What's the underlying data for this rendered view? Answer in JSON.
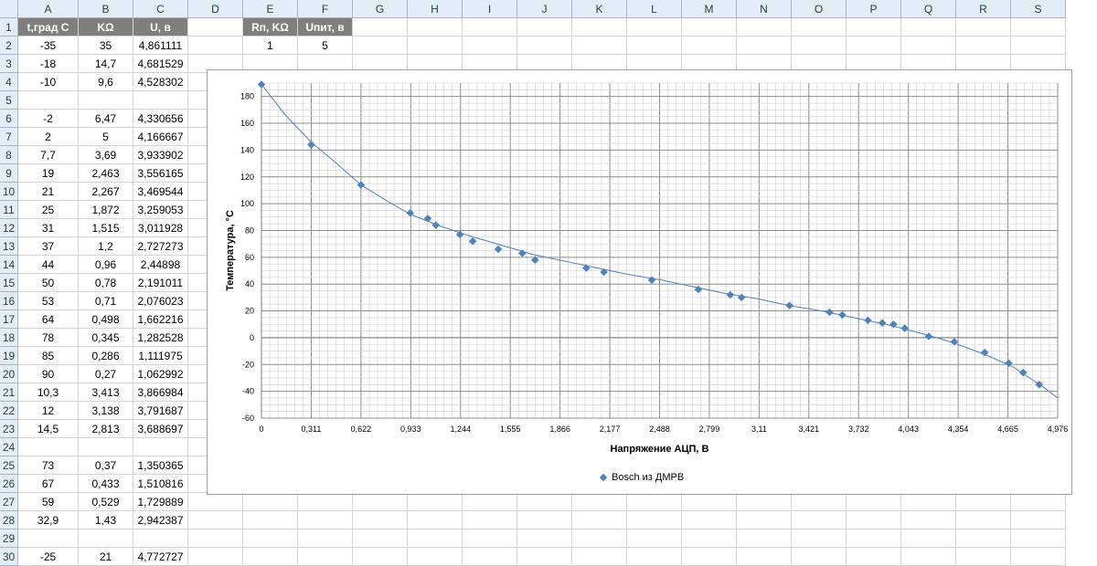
{
  "columns": [
    "A",
    "B",
    "C",
    "D",
    "E",
    "F",
    "G",
    "H",
    "I",
    "J",
    "K",
    "L",
    "M",
    "N",
    "O",
    "P",
    "Q",
    "R",
    "S"
  ],
  "rows": [
    "1",
    "2",
    "3",
    "4",
    "5",
    "6",
    "7",
    "8",
    "9",
    "10",
    "11",
    "12",
    "13",
    "14",
    "15",
    "16",
    "17",
    "18",
    "19",
    "20",
    "21",
    "22",
    "23",
    "24",
    "25",
    "26",
    "27",
    "28",
    "29",
    "30"
  ],
  "table": {
    "headers": [
      "t,град С",
      "KΩ",
      "U, в"
    ],
    "rows": [
      [
        "-35",
        "35",
        "4,861111"
      ],
      [
        "-18",
        "14,7",
        "4,681529"
      ],
      [
        "-10",
        "9,6",
        "4,528302"
      ],
      [
        "",
        "",
        ""
      ],
      [
        "-2",
        "6,47",
        "4,330656"
      ],
      [
        "2",
        "5",
        "4,166667"
      ],
      [
        "7,7",
        "3,69",
        "3,933902"
      ],
      [
        "19",
        "2,463",
        "3,556165"
      ],
      [
        "21",
        "2,267",
        "3,469544"
      ],
      [
        "25",
        "1,872",
        "3,259053"
      ],
      [
        "31",
        "1,515",
        "3,011928"
      ],
      [
        "37",
        "1,2",
        "2,727273"
      ],
      [
        "44",
        "0,96",
        "2,44898"
      ],
      [
        "50",
        "0,78",
        "2,191011"
      ],
      [
        "53",
        "0,71",
        "2,076023"
      ],
      [
        "64",
        "0,498",
        "1,662216"
      ],
      [
        "78",
        "0,345",
        "1,282528"
      ],
      [
        "85",
        "0,286",
        "1,111975"
      ],
      [
        "90",
        "0,27",
        "1,062992"
      ],
      [
        "10,3",
        "3,413",
        "3,866984"
      ],
      [
        "12",
        "3,138",
        "3,791687"
      ],
      [
        "14,5",
        "2,813",
        "3,688697"
      ],
      [
        "",
        "",
        ""
      ],
      [
        "73",
        "0,37",
        "1,350365"
      ],
      [
        "67",
        "0,433",
        "1,510816"
      ],
      [
        "59",
        "0,529",
        "1,729889"
      ],
      [
        "32,9",
        "1,43",
        "2,942387"
      ],
      [
        "",
        "",
        ""
      ],
      [
        "-25",
        "21",
        "4,772727"
      ]
    ]
  },
  "params": {
    "headers": [
      "Rп, KΩ",
      "Uпит, в"
    ],
    "values": [
      "1",
      "5"
    ]
  },
  "chart_data": {
    "type": "scatter",
    "xlabel": "Напряжение АЦП, В",
    "ylabel": "Температура, °С",
    "xlim": [
      0,
      4.976
    ],
    "ylim": [
      -60,
      190
    ],
    "xticks": [
      "0",
      "0,311",
      "0,622",
      "0,933",
      "1,244",
      "1,555",
      "1,866",
      "2,177",
      "2,488",
      "2,799",
      "3,11",
      "3,421",
      "3,732",
      "4,043",
      "4,354",
      "4,665",
      "4,976"
    ],
    "yticks": [
      "-60",
      "-40",
      "-20",
      "0",
      "20",
      "40",
      "60",
      "80",
      "100",
      "120",
      "140",
      "160",
      "180"
    ],
    "grid": true,
    "legend_position": "bottom",
    "series": [
      {
        "name": "Bosch из ДМРВ",
        "color": "#4f81bd",
        "points": [
          [
            0.0,
            189
          ],
          [
            0.311,
            144
          ],
          [
            0.622,
            114
          ],
          [
            0.93,
            93
          ],
          [
            1.04,
            89
          ],
          [
            1.09,
            84
          ],
          [
            1.24,
            77
          ],
          [
            1.32,
            72
          ],
          [
            1.48,
            66
          ],
          [
            1.63,
            63
          ],
          [
            1.71,
            58
          ],
          [
            2.03,
            52
          ],
          [
            2.14,
            49
          ],
          [
            2.44,
            43
          ],
          [
            2.73,
            36
          ],
          [
            2.93,
            32
          ],
          [
            3.0,
            30
          ],
          [
            3.3,
            24
          ],
          [
            3.55,
            19
          ],
          [
            3.63,
            17
          ],
          [
            3.79,
            13
          ],
          [
            3.88,
            11
          ],
          [
            3.95,
            10
          ],
          [
            4.02,
            7
          ],
          [
            4.17,
            1
          ],
          [
            4.33,
            -3
          ],
          [
            4.52,
            -11
          ],
          [
            4.67,
            -19
          ],
          [
            4.76,
            -26
          ],
          [
            4.86,
            -35
          ]
        ]
      }
    ],
    "trendline": [
      [
        0.0,
        189
      ],
      [
        0.15,
        166
      ],
      [
        0.311,
        146
      ],
      [
        0.45,
        132
      ],
      [
        0.622,
        114
      ],
      [
        0.8,
        101
      ],
      [
        0.933,
        92
      ],
      [
        1.1,
        84
      ],
      [
        1.3,
        76
      ],
      [
        1.5,
        69
      ],
      [
        1.7,
        62
      ],
      [
        1.9,
        57
      ],
      [
        2.1,
        52
      ],
      [
        2.3,
        47
      ],
      [
        2.5,
        43
      ],
      [
        2.7,
        38
      ],
      [
        2.9,
        33
      ],
      [
        3.1,
        29
      ],
      [
        3.3,
        24
      ],
      [
        3.5,
        20
      ],
      [
        3.7,
        15
      ],
      [
        3.9,
        10
      ],
      [
        4.1,
        4
      ],
      [
        4.25,
        -1
      ],
      [
        4.4,
        -7
      ],
      [
        4.55,
        -14
      ],
      [
        4.7,
        -22
      ],
      [
        4.8,
        -30
      ],
      [
        4.9,
        -38
      ],
      [
        4.976,
        -45
      ]
    ]
  }
}
